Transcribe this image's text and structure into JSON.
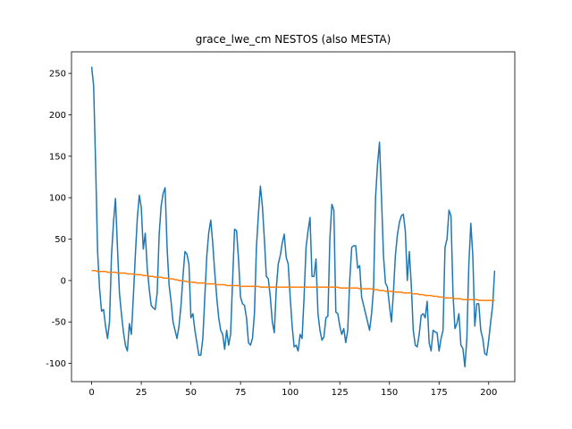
{
  "chart_data": {
    "type": "line",
    "title": "grace_lwe_cm NESTOS (also MESTA)",
    "xlim": [
      -10.15,
      213.15
    ],
    "xticks": [
      0,
      25,
      50,
      75,
      100,
      125,
      150,
      175,
      200
    ],
    "ylim": [
      -122,
      276
    ],
    "yticks": [
      -100,
      -50,
      0,
      50,
      100,
      150,
      200,
      250
    ],
    "grid": false,
    "series": [
      {
        "color": "#1f77b4",
        "values": [
          258,
          235,
          140,
          35,
          -10,
          -37,
          -35,
          -55,
          -70,
          -50,
          30,
          70,
          99,
          40,
          -15,
          -40,
          -62,
          -78,
          -85,
          -52,
          -65,
          -20,
          30,
          75,
          103,
          88,
          38,
          57,
          15,
          -10,
          -30,
          -33,
          -35,
          -15,
          55,
          90,
          105,
          112,
          40,
          -5,
          -25,
          -50,
          -60,
          -70,
          -55,
          -30,
          5,
          35,
          32,
          20,
          -45,
          -40,
          -60,
          -75,
          -90,
          -90,
          -70,
          -20,
          30,
          58,
          73,
          45,
          10,
          -20,
          -45,
          -60,
          -65,
          -83,
          -60,
          -78,
          -65,
          0,
          62,
          60,
          25,
          -20,
          -28,
          -30,
          -45,
          -75,
          -78,
          -70,
          -40,
          40,
          80,
          114,
          90,
          50,
          5,
          2,
          -20,
          -50,
          -63,
          -10,
          20,
          30,
          45,
          56,
          28,
          20,
          -20,
          -55,
          -80,
          -78,
          -85,
          -65,
          -70,
          -20,
          40,
          60,
          76,
          5,
          5,
          26,
          -40,
          -60,
          -72,
          -68,
          -45,
          -43,
          50,
          92,
          85,
          -38,
          -40,
          -55,
          -65,
          -58,
          -75,
          -60,
          0,
          40,
          42,
          42,
          15,
          18,
          -20,
          -30,
          -40,
          -50,
          -60,
          -40,
          -10,
          100,
          140,
          167,
          100,
          30,
          -3,
          -8,
          -30,
          -50,
          -15,
          30,
          55,
          70,
          78,
          80,
          60,
          0,
          35,
          -5,
          -60,
          -78,
          -80,
          -65,
          -42,
          -40,
          -45,
          -25,
          -75,
          -85,
          -60,
          -62,
          -63,
          -85,
          -70,
          -60,
          40,
          50,
          85,
          78,
          -15,
          -58,
          -52,
          -40,
          -78,
          -82,
          -104,
          -70,
          20,
          69,
          30,
          -55,
          -28,
          -28,
          -60,
          -70,
          -88,
          -90,
          -72,
          -50,
          -30,
          12
        ]
      },
      {
        "color": "#ff7f0e",
        "values": [
          12,
          12,
          12,
          11,
          11,
          11,
          11,
          11,
          10,
          10,
          10,
          10,
          10,
          9,
          9,
          9,
          9,
          9,
          8,
          8,
          8,
          8,
          7,
          7,
          7,
          7,
          6,
          6,
          6,
          5,
          5,
          5,
          4,
          4,
          4,
          4,
          3,
          3,
          3,
          2,
          2,
          2,
          1,
          1,
          0,
          0,
          0,
          -1,
          -1,
          -2,
          -2,
          -2,
          -2,
          -3,
          -3,
          -3,
          -3,
          -3,
          -4,
          -4,
          -4,
          -4,
          -4,
          -5,
          -5,
          -5,
          -5,
          -5,
          -6,
          -6,
          -6,
          -6,
          -6,
          -6,
          -6,
          -7,
          -7,
          -7,
          -7,
          -7,
          -7,
          -7,
          -7,
          -7,
          -7,
          -8,
          -8,
          -8,
          -8,
          -8,
          -8,
          -8,
          -8,
          -8,
          -8,
          -8,
          -8,
          -8,
          -8,
          -8,
          -8,
          -8,
          -8,
          -8,
          -8,
          -8,
          -8,
          -8,
          -8,
          -8,
          -8,
          -8,
          -8,
          -8,
          -8,
          -8,
          -8,
          -8,
          -8,
          -8,
          -8,
          -8,
          -8,
          -8,
          -8,
          -9,
          -9,
          -9,
          -9,
          -9,
          -9,
          -9,
          -9,
          -9,
          -9,
          -10,
          -10,
          -10,
          -10,
          -10,
          -10,
          -10,
          -11,
          -11,
          -11,
          -12,
          -12,
          -12,
          -13,
          -13,
          -13,
          -13,
          -13,
          -14,
          -14,
          -14,
          -14,
          -15,
          -15,
          -15,
          -15,
          -15,
          -16,
          -16,
          -16,
          -17,
          -17,
          -17,
          -18,
          -18,
          -18,
          -18,
          -19,
          -19,
          -19,
          -20,
          -20,
          -20,
          -21,
          -21,
          -21,
          -21,
          -21,
          -22,
          -22,
          -22,
          -22,
          -23,
          -23,
          -23,
          -23,
          -23,
          -23,
          -23,
          -23,
          -24,
          -24,
          -24,
          -24,
          -24,
          -24,
          -24,
          -24,
          -24
        ]
      }
    ]
  }
}
